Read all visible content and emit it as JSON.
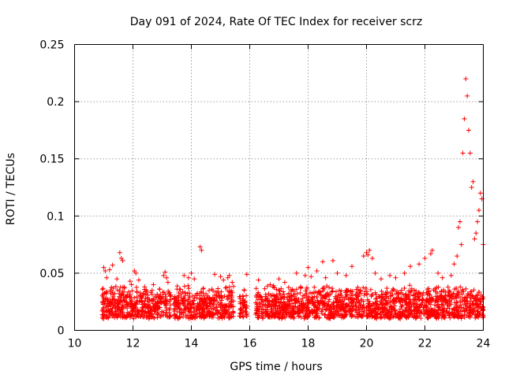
{
  "chart_data": {
    "type": "scatter",
    "title": "Day 091 of 2024, Rate Of TEC Index for receiver scrz",
    "xlabel": "GPS time / hours",
    "ylabel": "ROTI / TECUs",
    "xlim": [
      10,
      24
    ],
    "ylim": [
      0,
      0.25
    ],
    "xticks": [
      10,
      12,
      14,
      16,
      18,
      20,
      22,
      24
    ],
    "xtick_labels": [
      "10",
      "12",
      "14",
      "16",
      "18",
      "20",
      "22",
      "24"
    ],
    "yticks": [
      0,
      0.05,
      0.1,
      0.15,
      0.2,
      0.25
    ],
    "ytick_labels": [
      "0",
      "0.05",
      "0.1",
      "0.15",
      "0.2",
      "0.25"
    ],
    "grid": true,
    "marker": "+",
    "color": "#ff0000",
    "series": [
      {
        "name": "ROTI",
        "x": [
          11.0,
          11.05,
          11.1,
          11.2,
          11.3,
          11.45,
          11.55,
          11.6,
          11.65,
          11.9,
          11.95,
          12.05,
          12.1,
          12.2,
          12.4,
          12.7,
          13.05,
          13.1,
          13.15,
          13.2,
          13.6,
          13.75,
          13.9,
          14.0,
          14.1,
          14.3,
          14.35,
          14.8,
          15.0,
          15.1,
          15.25,
          15.3,
          15.4,
          15.9,
          16.3,
          16.7,
          17.0,
          17.2,
          17.6,
          17.9,
          18.0,
          18.1,
          18.3,
          18.5,
          18.6,
          18.85,
          19.0,
          19.3,
          19.5,
          19.9,
          20.0,
          20.05,
          20.1,
          20.2,
          20.3,
          20.5,
          20.8,
          21.0,
          21.3,
          21.5,
          21.8,
          22.0,
          22.2,
          22.25,
          22.45,
          22.6,
          22.9,
          23.0,
          23.1,
          23.15,
          23.2,
          23.25,
          23.3,
          23.35,
          23.4,
          23.45,
          23.5,
          23.55,
          23.6,
          23.65,
          23.7,
          23.75,
          23.8,
          23.85,
          23.9,
          23.95,
          24.0
        ],
        "y": [
          0.055,
          0.052,
          0.046,
          0.053,
          0.057,
          0.045,
          0.068,
          0.063,
          0.061,
          0.043,
          0.04,
          0.052,
          0.05,
          0.044,
          0.038,
          0.04,
          0.048,
          0.051,
          0.046,
          0.042,
          0.036,
          0.048,
          0.046,
          0.05,
          0.045,
          0.073,
          0.07,
          0.049,
          0.047,
          0.044,
          0.046,
          0.048,
          0.042,
          0.049,
          0.044,
          0.04,
          0.045,
          0.042,
          0.05,
          0.048,
          0.055,
          0.047,
          0.052,
          0.06,
          0.046,
          0.061,
          0.05,
          0.048,
          0.056,
          0.065,
          0.068,
          0.066,
          0.07,
          0.063,
          0.05,
          0.045,
          0.048,
          0.046,
          0.05,
          0.056,
          0.058,
          0.063,
          0.067,
          0.07,
          0.05,
          0.046,
          0.048,
          0.058,
          0.065,
          0.09,
          0.095,
          0.075,
          0.155,
          0.185,
          0.22,
          0.205,
          0.175,
          0.155,
          0.125,
          0.13,
          0.08,
          0.085,
          0.095,
          0.105,
          0.12,
          0.115,
          0.075
        ],
        "background_band": {
          "segments": [
            [
              10.95,
              13.3
            ],
            [
              13.4,
              15.45
            ],
            [
              15.65,
              15.9
            ],
            [
              16.2,
              24.0
            ]
          ],
          "typical_range": [
            0.007,
            0.04
          ]
        }
      }
    ]
  }
}
